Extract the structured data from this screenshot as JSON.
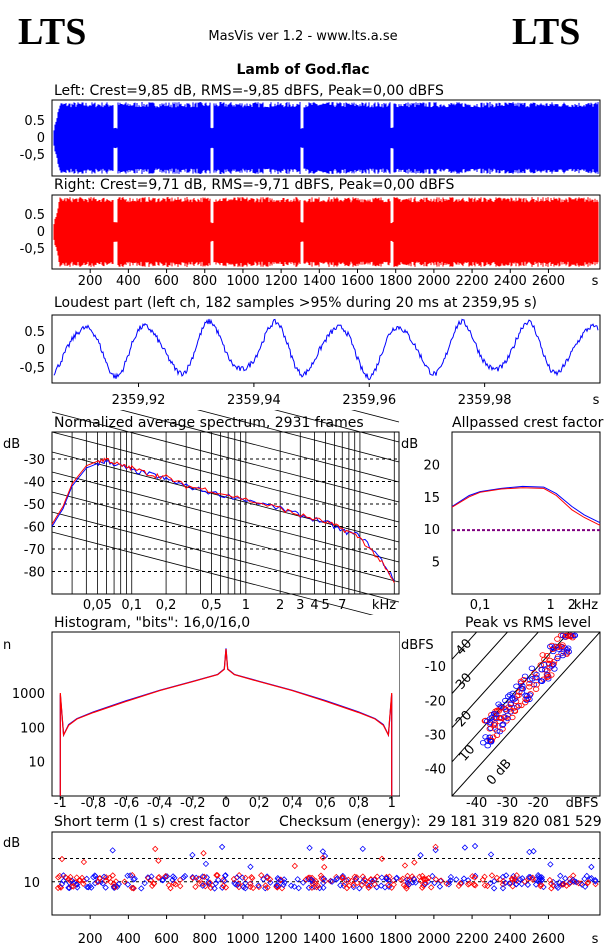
{
  "header": {
    "logo_left": "LTS",
    "logo_right": "LTS",
    "app_title": "MasVis ver 1.2 - www.lts.a.se",
    "file_title": "Lamb of God.flac"
  },
  "colors": {
    "left": "#0000ff",
    "right": "#ff0000",
    "purple": "#800080",
    "grid": "#000000"
  },
  "chart_data": [
    {
      "type": "area",
      "title": "Left: Crest=9,85 dB, RMS=-9,85 dBFS, Peak=0,00 dBFS",
      "series": [
        {
          "name": "Left",
          "color": "#0000ff"
        }
      ],
      "ylim": [
        -1,
        1
      ],
      "y_ticks": [
        "0.5",
        "0",
        "-0,5"
      ],
      "xlim": [
        0,
        2870
      ],
      "x_unit": "s"
    },
    {
      "type": "area",
      "title": "Right: Crest=9,71 dB, RMS=-9,71 dBFS, Peak=0,00 dBFS",
      "series": [
        {
          "name": "Right",
          "color": "#ff0000"
        }
      ],
      "ylim": [
        -1,
        1
      ],
      "y_ticks": [
        "0.5",
        "0",
        "-0,5"
      ],
      "x_ticks": [
        "200",
        "400",
        "600",
        "800",
        "1000",
        "1200",
        "1400",
        "1600",
        "1800",
        "2000",
        "2200",
        "2400",
        "2600",
        "s"
      ],
      "xlim": [
        0,
        2870
      ]
    },
    {
      "type": "line",
      "title": "Loudest part (left  ch, 182 samples >95% during 20 ms at 2359,95 s)",
      "ylim": [
        -1,
        1
      ],
      "y_ticks": [
        "0.5",
        "0",
        "-0,5"
      ],
      "x_ticks": [
        "2359,92",
        "2359,94",
        "2359,96",
        "2359,98",
        "s"
      ],
      "xlim": [
        2359.905,
        2360.0
      ]
    },
    {
      "type": "line",
      "title": "Normalized average spectrum, 2931 frames",
      "ylabel": "dB",
      "y_ticks": [
        "-30",
        "-40",
        "-50",
        "-60",
        "-70",
        "-80"
      ],
      "x_ticks": [
        "0,05",
        "0,1",
        "0,2",
        "0,5",
        "1",
        "2",
        "3",
        "4",
        "5",
        "7",
        "kHz"
      ],
      "x_log": true,
      "xlim": [
        0.02,
        22
      ],
      "ylim": [
        -90,
        -18
      ],
      "series": [
        {
          "name": "Left",
          "color": "#0000ff",
          "x": [
            0.02,
            0.025,
            0.03,
            0.04,
            0.05,
            0.06,
            0.08,
            0.1,
            0.15,
            0.2,
            0.3,
            0.5,
            1,
            2,
            3,
            5,
            7,
            10,
            15,
            20
          ],
          "y": [
            -60,
            -52,
            -42,
            -34,
            -32,
            -31,
            -33,
            -35,
            -37,
            -39,
            -42,
            -45,
            -48,
            -52,
            -55,
            -58,
            -62,
            -64,
            -74,
            -84
          ]
        },
        {
          "name": "Right",
          "color": "#ff0000",
          "x": [
            0.02,
            0.025,
            0.03,
            0.04,
            0.05,
            0.06,
            0.08,
            0.1,
            0.15,
            0.2,
            0.3,
            0.5,
            1,
            2,
            3,
            5,
            7,
            10,
            15,
            20
          ],
          "y": [
            -59,
            -51,
            -41,
            -33,
            -31,
            -30,
            -33,
            -34,
            -37,
            -38,
            -42,
            -44,
            -48,
            -52,
            -55,
            -58,
            -61,
            -65,
            -75,
            -85
          ]
        }
      ]
    },
    {
      "type": "line",
      "title": "Allpassed crest factor",
      "ylabel": "dB",
      "y_ticks": [
        "20",
        "15",
        "10",
        "5"
      ],
      "x_ticks": [
        "0,1",
        "1",
        "2",
        "kHz"
      ],
      "x_log": true,
      "xlim": [
        0.04,
        5
      ],
      "ylim": [
        0,
        25
      ],
      "reference_line": 9.85,
      "series": [
        {
          "name": "Left",
          "color": "#0000ff",
          "x": [
            0.04,
            0.07,
            0.1,
            0.2,
            0.4,
            0.8,
            1.2,
            2,
            3,
            5
          ],
          "y": [
            13.5,
            15.2,
            15.8,
            16.3,
            16.6,
            16.5,
            15.5,
            13.5,
            12.2,
            11
          ]
        },
        {
          "name": "Right",
          "color": "#ff0000",
          "x": [
            0.04,
            0.07,
            0.1,
            0.2,
            0.4,
            0.8,
            1.2,
            2,
            3,
            5
          ],
          "y": [
            13.4,
            15.0,
            15.7,
            16.2,
            16.4,
            16.3,
            15.2,
            13.0,
            11.8,
            10.6
          ]
        }
      ]
    },
    {
      "type": "line",
      "title": "Histogram, \"bits\": 16,0/16,0",
      "ylabel": "n",
      "y_ticks": [
        "1000",
        "100",
        "10"
      ],
      "y_log": true,
      "ylim": [
        1,
        60000
      ],
      "x_ticks": [
        "-1",
        "-0,8",
        "-0,6",
        "-0,4",
        "-0,2",
        "0",
        "0,2",
        "0,4",
        "0,6",
        "0,8",
        "1"
      ],
      "xlim": [
        -1.05,
        1.05
      ],
      "series": [
        {
          "name": "Left",
          "color": "#0000ff",
          "x": [
            -1,
            -0.98,
            -0.95,
            -0.9,
            -0.8,
            -0.6,
            -0.4,
            -0.2,
            -0.05,
            -0.01,
            0,
            0.01,
            0.05,
            0.2,
            0.4,
            0.6,
            0.8,
            0.9,
            0.95,
            0.98,
            1
          ],
          "y": [
            900,
            60,
            120,
            180,
            280,
            600,
            1200,
            2200,
            3500,
            5000,
            20000,
            5000,
            3500,
            2200,
            1200,
            600,
            280,
            180,
            120,
            60,
            900
          ]
        },
        {
          "name": "Right",
          "color": "#ff0000",
          "x": [
            -1,
            -0.98,
            -0.95,
            -0.9,
            -0.8,
            -0.6,
            -0.4,
            -0.2,
            -0.05,
            -0.01,
            0,
            0.01,
            0.05,
            0.2,
            0.4,
            0.6,
            0.8,
            0.9,
            0.95,
            0.98,
            1
          ],
          "y": [
            1000,
            60,
            115,
            175,
            270,
            580,
            1180,
            2150,
            3450,
            4900,
            19000,
            4900,
            3450,
            2150,
            1180,
            580,
            270,
            175,
            115,
            60,
            1000
          ]
        }
      ]
    },
    {
      "type": "scatter",
      "title": "Peak vs RMS level",
      "ylabel": "dBFS",
      "xlabel": "dBFS",
      "y_ticks": [
        "-10",
        "-20",
        "-30",
        "-40"
      ],
      "x_ticks": [
        "-40",
        "-30",
        "-20",
        "dBFS"
      ],
      "xlim": [
        -48,
        0
      ],
      "ylim": [
        -48,
        0
      ],
      "diagonal_labels": [
        "40",
        "30",
        "20",
        "10",
        "0 dB"
      ]
    },
    {
      "type": "scatter",
      "title": "Short term (1 s) crest factor",
      "ylabel": "dB",
      "y_ticks": [
        "10"
      ],
      "x_ticks": [
        "200",
        "400",
        "600",
        "800",
        "1000",
        "1200",
        "1400",
        "1600",
        "1800",
        "2000",
        "2200",
        "2400",
        "2600",
        "s"
      ],
      "xlim": [
        0,
        2870
      ],
      "ylim": [
        0,
        25
      ]
    }
  ],
  "checksum": {
    "label": "Checksum (energy):",
    "value": "29 181 319 820 081 529"
  }
}
